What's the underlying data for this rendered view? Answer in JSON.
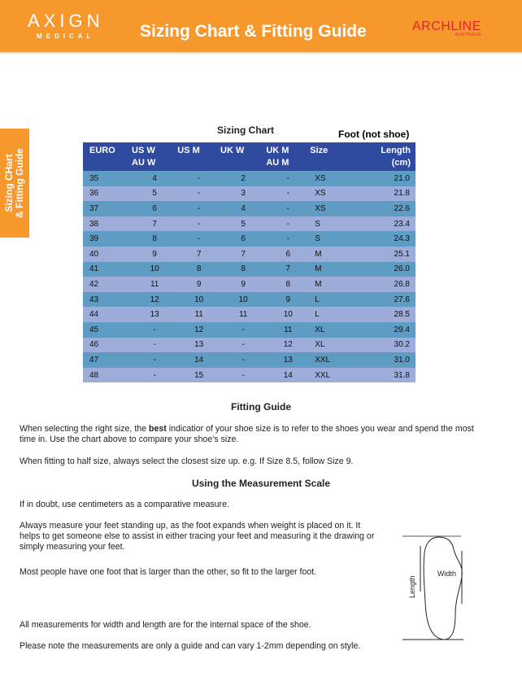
{
  "header": {
    "logo_main": "AXIGN",
    "logo_sub": "MEDICAL",
    "title": "Sizing Chart & Fitting Guide",
    "brand": "ARCHLINE",
    "brand_sub": "AUSTRALIA"
  },
  "sidetab": {
    "line1": "Sizing CHart",
    "line2": "& Fitting Guide"
  },
  "sizing": {
    "title": "Sizing Chart",
    "foot_label": "Foot (not shoe)",
    "headers": [
      [
        "EURO",
        ""
      ],
      [
        "US W",
        "AU W"
      ],
      [
        "US M",
        ""
      ],
      [
        "UK W",
        ""
      ],
      [
        "UK M",
        "AU M"
      ],
      [
        "Size",
        ""
      ],
      [
        "Length",
        "(cm)"
      ]
    ],
    "rows": [
      [
        "35",
        "4",
        "-",
        "2",
        "-",
        "XS",
        "21.0"
      ],
      [
        "36",
        "5",
        "-",
        "3",
        "-",
        "XS",
        "21.8"
      ],
      [
        "37",
        "6",
        "-",
        "4",
        "-",
        "XS",
        "22.6"
      ],
      [
        "38",
        "7",
        "-",
        "5",
        "-",
        "S",
        "23.4"
      ],
      [
        "39",
        "8",
        "-",
        "6",
        "-",
        "S",
        "24.3"
      ],
      [
        "40",
        "9",
        "7",
        "7",
        "6",
        "M",
        "25.1"
      ],
      [
        "41",
        "10",
        "8",
        "8",
        "7",
        "M",
        "26.0"
      ],
      [
        "42",
        "11",
        "9",
        "9",
        "8",
        "M",
        "26.8"
      ],
      [
        "43",
        "12",
        "10",
        "10",
        "9",
        "L",
        "27.6"
      ],
      [
        "44",
        "13",
        "11",
        "11",
        "10",
        "L",
        "28.5"
      ],
      [
        "45",
        "-",
        "12",
        "-",
        "11",
        "XL",
        "29.4"
      ],
      [
        "46",
        "-",
        "13",
        "-",
        "12",
        "XL",
        "30.2"
      ],
      [
        "47",
        "-",
        "14",
        "-",
        "13",
        "XXL",
        "31.0"
      ],
      [
        "48",
        "-",
        "15",
        "-",
        "14",
        "XXL",
        "31.8"
      ]
    ],
    "colors": {
      "header": "#2f4a9f",
      "row_odd": "#5e9cc4",
      "row_even": "#9eacd9"
    }
  },
  "fitting": {
    "title": "Fitting Guide",
    "p1_a": "When selecting the right size, the ",
    "p1_bold": "best",
    "p1_b": " indicatior of your shoe size is to refer to the shoes you wear and spend the most time in. Use the chart above to compare your shoe's size.",
    "p2": "When fitting to half size, always select the closest size up. e.g. If Size 8.5, follow Size 9."
  },
  "measurement": {
    "title": "Using the Measurement Scale",
    "p1": "If in doubt, use centimeters as a comparative measure.",
    "p2": "Always measure your feet standing up, as the foot expands when weight is placed on it. It helps to get someone else to assist in either tracing your feet and measuring it the drawing or simply measuring your feet.",
    "p3": "Most people have one foot that is larger than the other, so fit to the larger foot.",
    "p4": "All measurements for width and length are for the internal space of the shoe.",
    "p5": "Please note the measurements are only a guide and can vary 1-2mm depending on style.",
    "diagram": {
      "length_label": "Length",
      "width_label": "Width"
    }
  },
  "accent": "#f6982c"
}
